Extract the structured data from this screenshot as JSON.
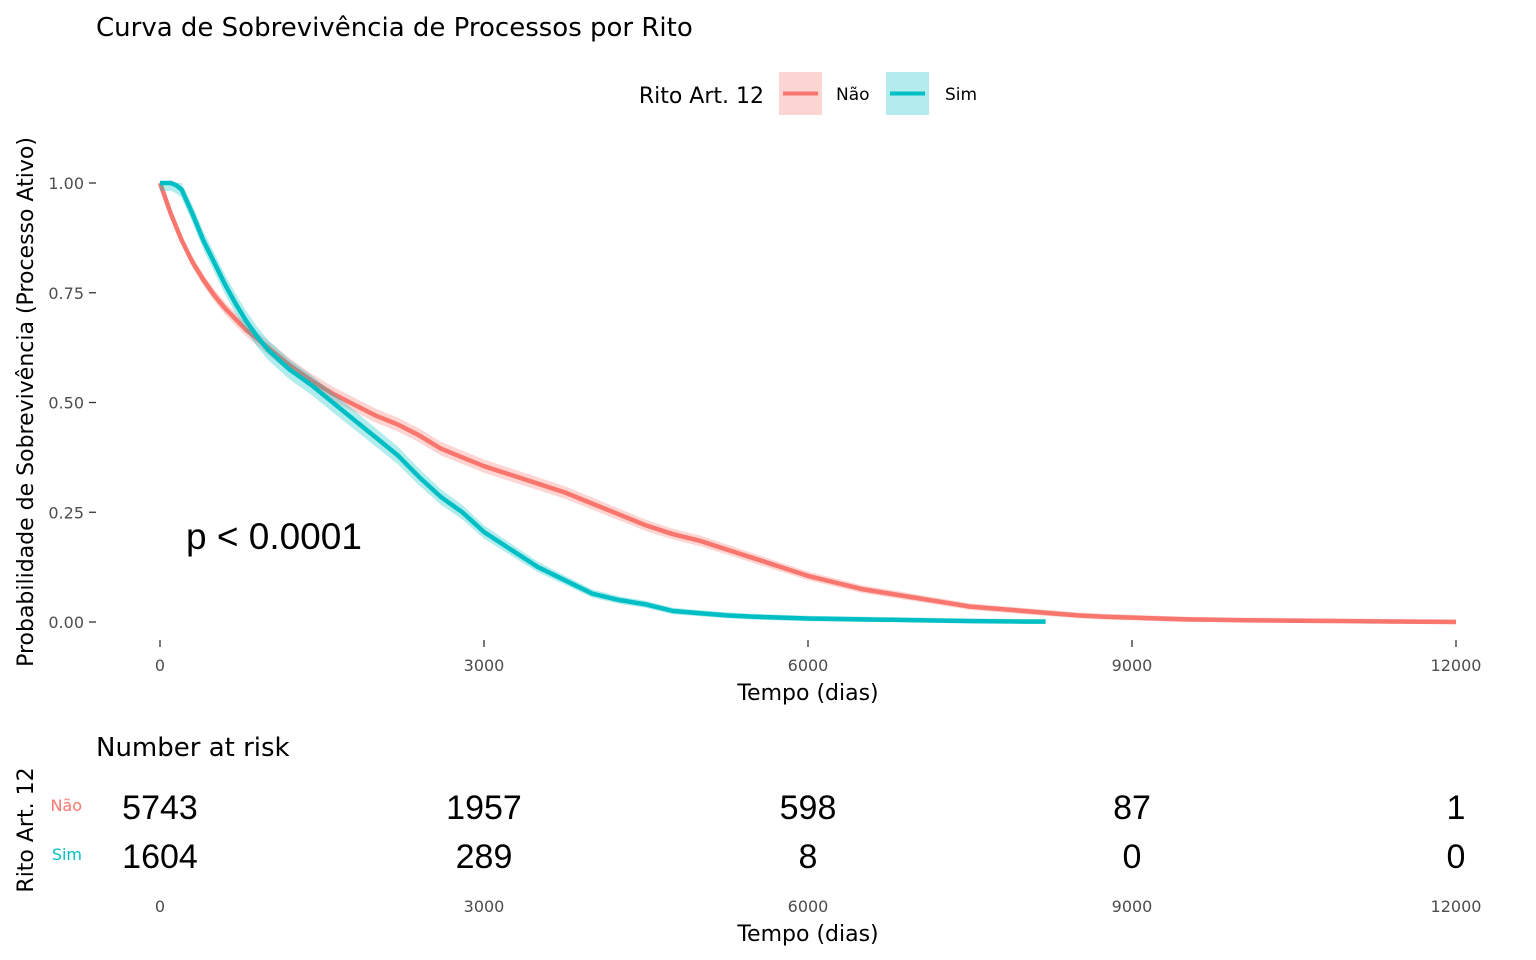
{
  "chart_data": {
    "type": "line",
    "title": "Curva de Sobrevivência de Processos por Rito",
    "xlabel": "Tempo (dias)",
    "ylabel": "Probabilidade de Sobrevivência (Processo Ativo)",
    "xlim": [
      0,
      12000
    ],
    "ylim": [
      0,
      1
    ],
    "x_ticks": [
      "0",
      "3000",
      "6000",
      "9000",
      "12000"
    ],
    "y_ticks": [
      "0.00",
      "0.25",
      "0.50",
      "0.75",
      "1.00"
    ],
    "x_tick_values": [
      0,
      3000,
      6000,
      9000,
      12000
    ],
    "y_tick_values": [
      0,
      0.25,
      0.5,
      0.75,
      1
    ],
    "grid": false,
    "legend": {
      "title": "Rito Art. 12",
      "position": "top"
    },
    "annotation": "p < 0.0001",
    "series": [
      {
        "name": "Não",
        "color": "#F8766D",
        "x": [
          0,
          100,
          200,
          300,
          400,
          500,
          600,
          700,
          800,
          900,
          1000,
          1200,
          1400,
          1600,
          1800,
          2000,
          2200,
          2400,
          2600,
          2800,
          3000,
          3250,
          3500,
          3750,
          4000,
          4250,
          4500,
          4750,
          5000,
          5250,
          5500,
          5750,
          6000,
          6250,
          6500,
          6750,
          7000,
          7250,
          7500,
          7750,
          8000,
          8250,
          8500,
          8750,
          9000,
          9250,
          9500,
          9750,
          10000,
          10500,
          11000,
          11500,
          12000
        ],
        "y": [
          1.0,
          0.93,
          0.87,
          0.82,
          0.78,
          0.745,
          0.715,
          0.69,
          0.665,
          0.645,
          0.625,
          0.585,
          0.55,
          0.52,
          0.495,
          0.47,
          0.45,
          0.425,
          0.395,
          0.375,
          0.355,
          0.335,
          0.315,
          0.295,
          0.27,
          0.245,
          0.22,
          0.2,
          0.185,
          0.165,
          0.145,
          0.125,
          0.105,
          0.09,
          0.075,
          0.065,
          0.055,
          0.045,
          0.035,
          0.03,
          0.025,
          0.02,
          0.015,
          0.012,
          0.01,
          0.008,
          0.006,
          0.005,
          0.004,
          0.003,
          0.002,
          0.001,
          0.0
        ]
      },
      {
        "name": "Sim",
        "color": "#00BFC4",
        "x": [
          0,
          100,
          150,
          200,
          300,
          400,
          500,
          600,
          700,
          800,
          900,
          1000,
          1200,
          1400,
          1600,
          1800,
          2000,
          2200,
          2400,
          2600,
          2800,
          3000,
          3250,
          3500,
          3750,
          4000,
          4250,
          4500,
          4750,
          5000,
          5250,
          5500,
          5750,
          6000,
          6500,
          7000,
          7500,
          8000,
          8200
        ],
        "y": [
          1.0,
          1.0,
          0.995,
          0.985,
          0.93,
          0.87,
          0.82,
          0.77,
          0.725,
          0.685,
          0.65,
          0.62,
          0.575,
          0.54,
          0.5,
          0.46,
          0.42,
          0.38,
          0.33,
          0.285,
          0.25,
          0.205,
          0.165,
          0.125,
          0.095,
          0.065,
          0.05,
          0.04,
          0.025,
          0.02,
          0.015,
          0.012,
          0.01,
          0.008,
          0.006,
          0.004,
          0.002,
          0.001,
          0.001
        ]
      }
    ],
    "risk_table": {
      "title": "Number at risk",
      "ylabel": "Rito Art. 12",
      "xlabel": "Tempo (dias)",
      "times": [
        "0",
        "3000",
        "6000",
        "9000",
        "12000"
      ],
      "time_values": [
        0,
        3000,
        6000,
        9000,
        12000
      ],
      "rows": [
        {
          "group": "Não",
          "color": "#F8766D",
          "counts": [
            "5743",
            "1957",
            "598",
            "87",
            "1"
          ]
        },
        {
          "group": "Sim",
          "color": "#00BFC4",
          "counts": [
            "1604",
            "289",
            "8",
            "0",
            "0"
          ]
        }
      ]
    }
  }
}
